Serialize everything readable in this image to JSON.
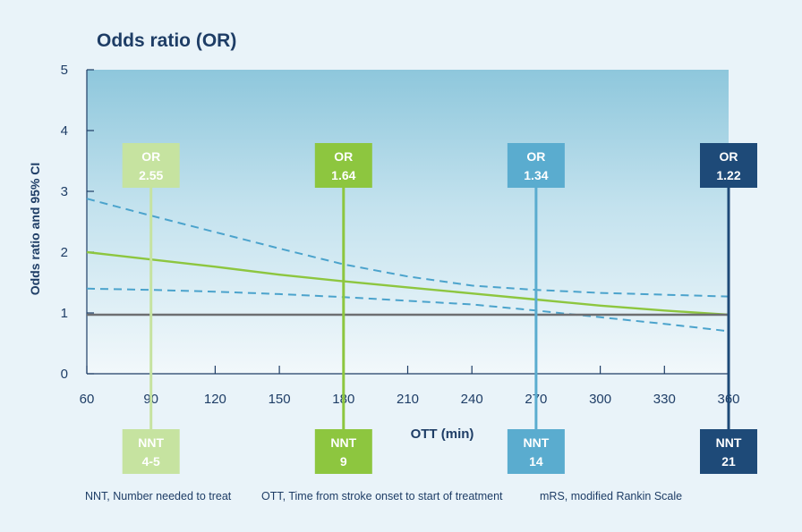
{
  "chart_data": {
    "type": "line",
    "title": "Odds ratio (OR)",
    "xlabel": "OTT (min)",
    "ylabel": "Odds ratio and 95% CI",
    "xlim": [
      60,
      360
    ],
    "ylim": [
      0,
      5
    ],
    "x_ticks": [
      "60",
      "90",
      "120",
      "150",
      "180",
      "210",
      "240",
      "270",
      "300",
      "330",
      "360"
    ],
    "y_ticks": [
      "0",
      "1",
      "2",
      "3",
      "4",
      "5"
    ],
    "grid": false,
    "series": [
      {
        "style": "solid",
        "color": "#8dc63f",
        "x": [
          60,
          90,
          120,
          150,
          180,
          210,
          240,
          270,
          300,
          330,
          360
        ],
        "y": [
          2.0,
          1.88,
          1.76,
          1.63,
          1.52,
          1.42,
          1.32,
          1.22,
          1.12,
          1.04,
          0.97
        ]
      },
      {
        "style": "dashed",
        "color": "#4ba3cc",
        "x": [
          60,
          90,
          120,
          150,
          180,
          210,
          240,
          270,
          300,
          330,
          360
        ],
        "y": [
          2.88,
          2.6,
          2.33,
          2.06,
          1.8,
          1.6,
          1.45,
          1.38,
          1.33,
          1.3,
          1.27
        ]
      },
      {
        "style": "dashed",
        "color": "#4ba3cc",
        "x": [
          60,
          90,
          120,
          150,
          180,
          210,
          240,
          270,
          300,
          330,
          360
        ],
        "y": [
          1.4,
          1.38,
          1.35,
          1.31,
          1.26,
          1.2,
          1.14,
          1.04,
          0.93,
          0.82,
          0.7
        ]
      },
      {
        "style": "solid",
        "color": "#6d6e71",
        "x": [
          60,
          360
        ],
        "y": [
          0.97,
          0.97
        ]
      }
    ],
    "markers": [
      {
        "x": 90,
        "or_label": "OR",
        "or_value": "2.55",
        "nnt_label": "NNT",
        "nnt_value": "4-5",
        "color": "#c6e3a0"
      },
      {
        "x": 180,
        "or_label": "OR",
        "or_value": "1.64",
        "nnt_label": "NNT",
        "nnt_value": "9",
        "color": "#8dc63f"
      },
      {
        "x": 270,
        "or_label": "OR",
        "or_value": "1.34",
        "nnt_label": "NNT",
        "nnt_value": "14",
        "color": "#5aaccf"
      },
      {
        "x": 360,
        "or_label": "OR",
        "or_value": "1.22",
        "nnt_label": "NNT",
        "nnt_value": "21",
        "color": "#1e4a78"
      }
    ],
    "footnotes": [
      "NNT, Number needed to treat",
      "OTT, Time from stroke onset to start of treatment",
      "mRS, modified  Rankin Scale"
    ]
  }
}
